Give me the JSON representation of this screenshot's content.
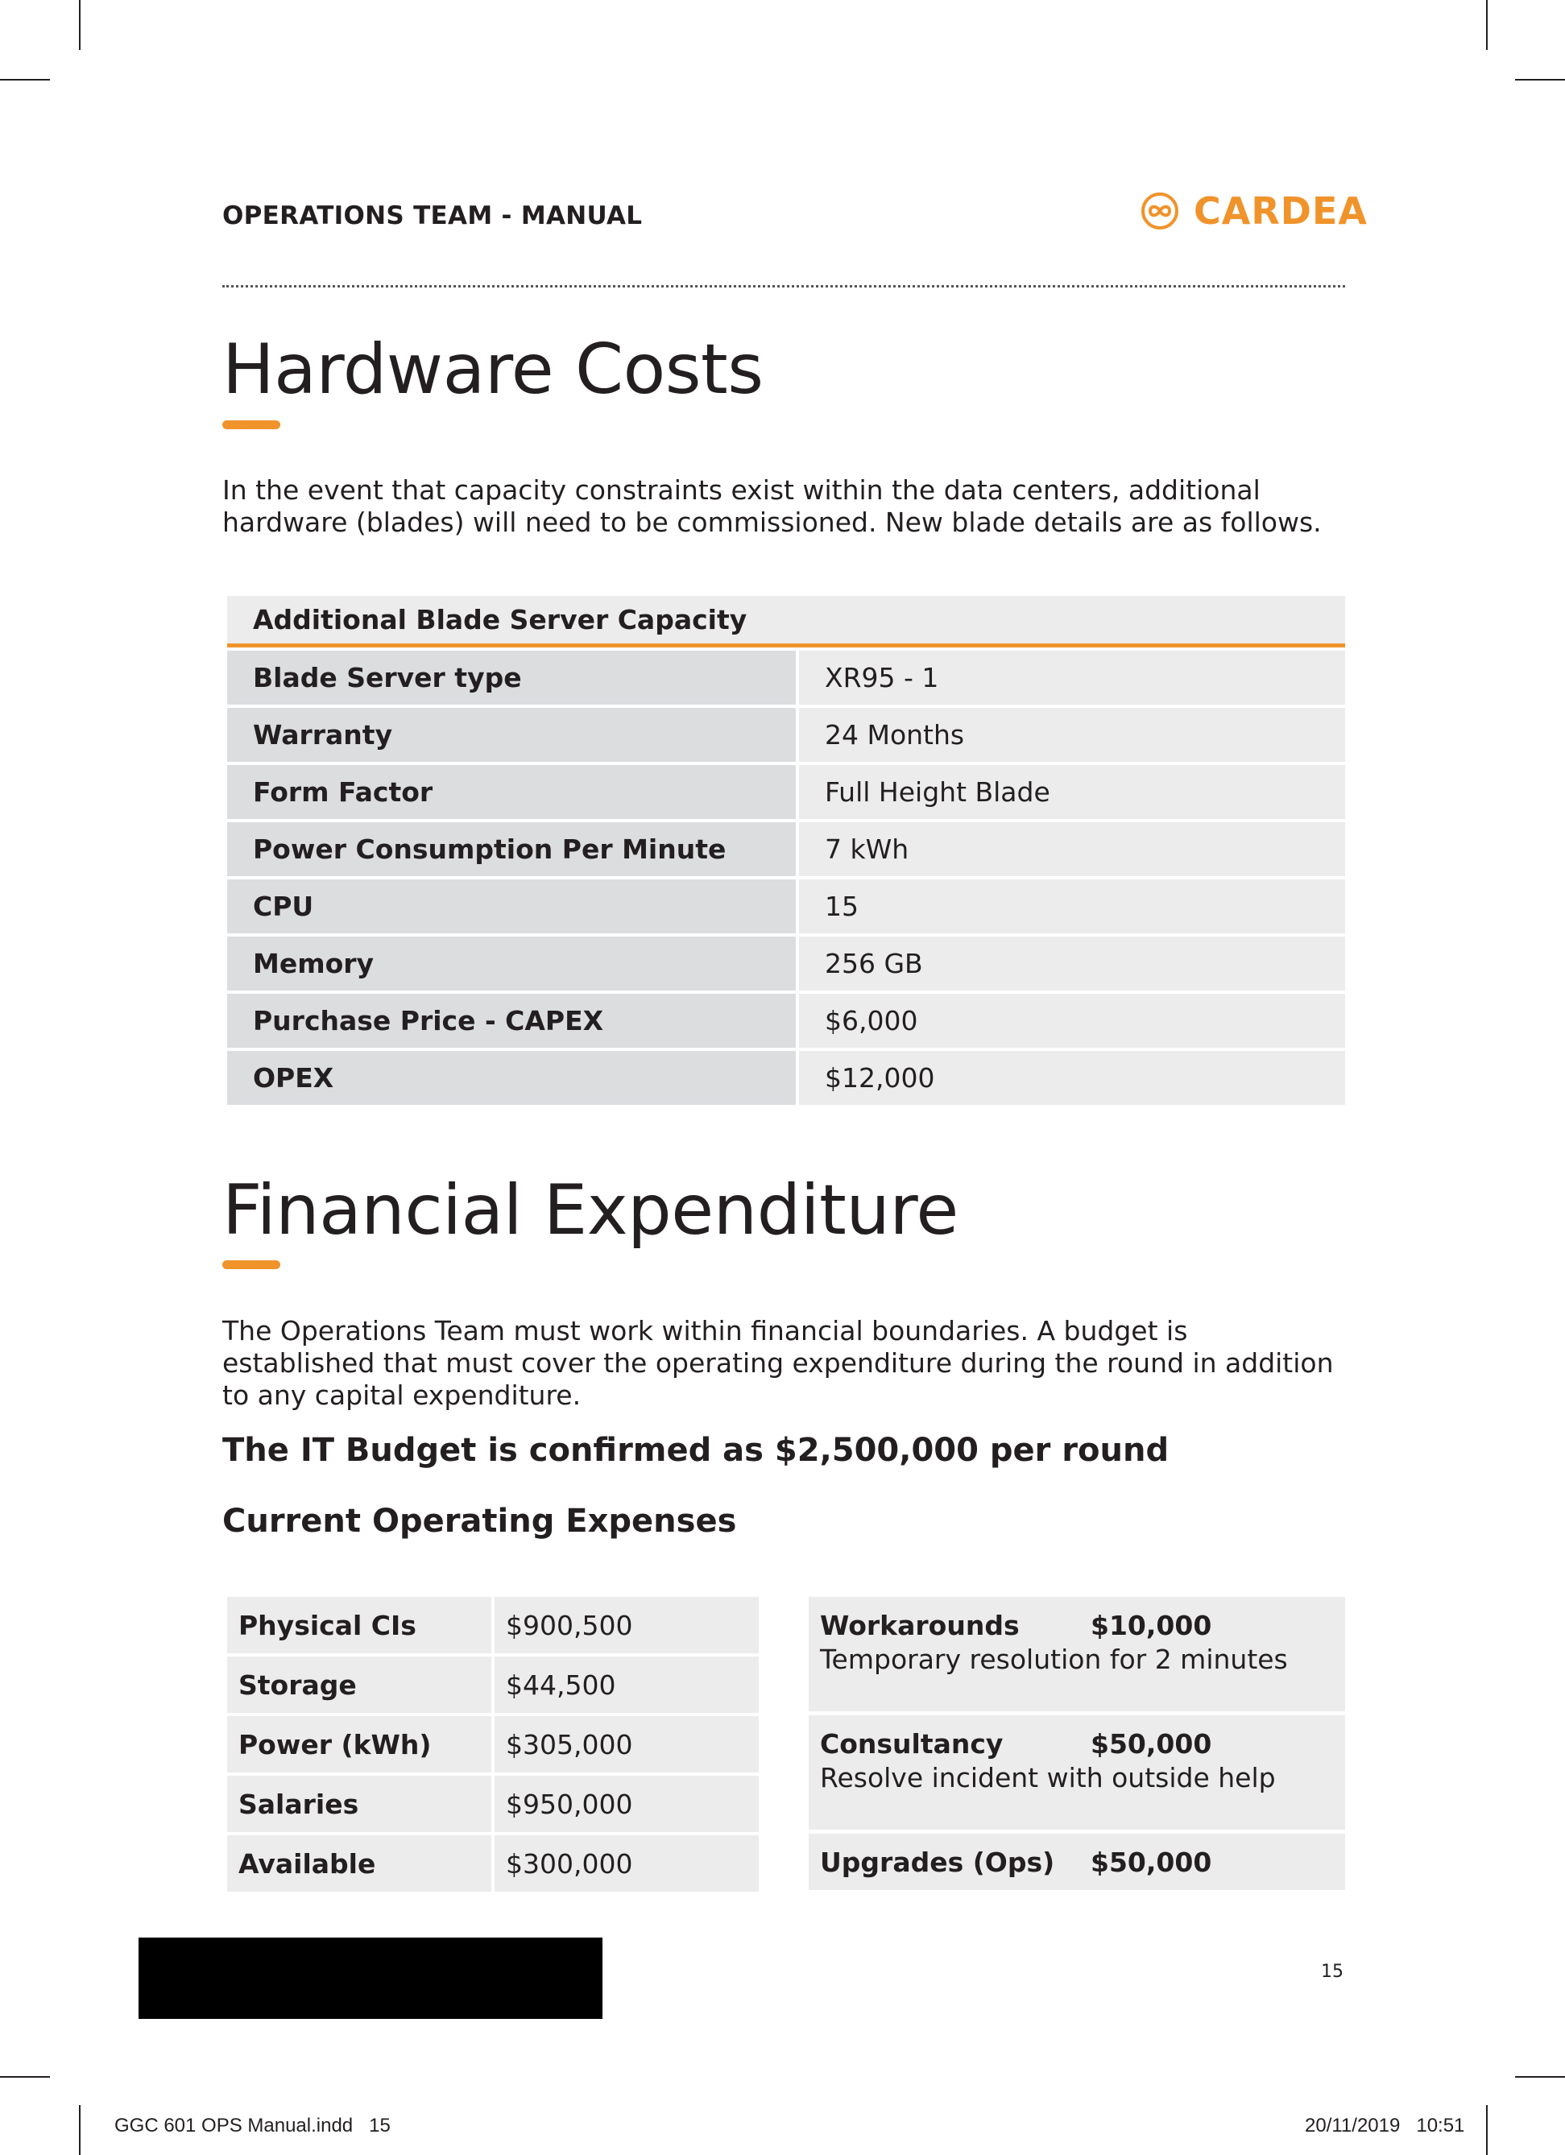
{
  "header": {
    "running_head": "OPERATIONS TEAM - MANUAL",
    "logo": {
      "icon": "infinity-circle-icon",
      "text": "CARDEA",
      "color": "#f0932b"
    }
  },
  "hardware": {
    "title": "Hardware Costs",
    "intro": "In the event that capacity constraints exist within the data centers, additional hardware (blades) will need to be commissioned. New blade details are as follows.",
    "table": {
      "heading": "Additional Blade Server Capacity",
      "rows": [
        {
          "label": "Blade Server type",
          "value": "XR95 - 1"
        },
        {
          "label": "Warranty",
          "value": "24 Months"
        },
        {
          "label": "Form Factor",
          "value": "Full Height Blade"
        },
        {
          "label": "Power Consumption Per Minute",
          "value": "7 kWh"
        },
        {
          "label": "CPU",
          "value": "15"
        },
        {
          "label": "Memory",
          "value": "256 GB"
        },
        {
          "label": "Purchase Price - CAPEX",
          "value": "$6,000"
        },
        {
          "label": "OPEX",
          "value": "$12,000"
        }
      ]
    }
  },
  "financial": {
    "title": "Financial Expenditure",
    "intro": "The Operations Team must work within financial boundaries. A budget is established that must cover the operating expenditure during the round in addition to any capital expenditure.",
    "budget": "The IT Budget is confirmed as $2,500,000 per round",
    "subheading": "Current Operating Expenses",
    "expenses": [
      {
        "label": "Physical CIs",
        "value": "$900,500"
      },
      {
        "label": "Storage",
        "value": "$44,500"
      },
      {
        "label": "Power (kWh)",
        "value": "$305,000"
      },
      {
        "label": "Salaries",
        "value": "$950,000"
      },
      {
        "label": "Available",
        "value": "$300,000"
      }
    ],
    "options": [
      {
        "label": "Workarounds",
        "cost": "$10,000",
        "description": "Temporary resolution for 2 minutes"
      },
      {
        "label": "Consultancy",
        "cost": "$50,000",
        "description": "Resolve incident with outside help"
      },
      {
        "label": "Upgrades (Ops)",
        "cost": "$50,000"
      }
    ]
  },
  "footer": {
    "page_number": "15",
    "slug_file": "GGC 601 OPS Manual.indd   15",
    "slug_date": "20/11/2019   10:51"
  }
}
